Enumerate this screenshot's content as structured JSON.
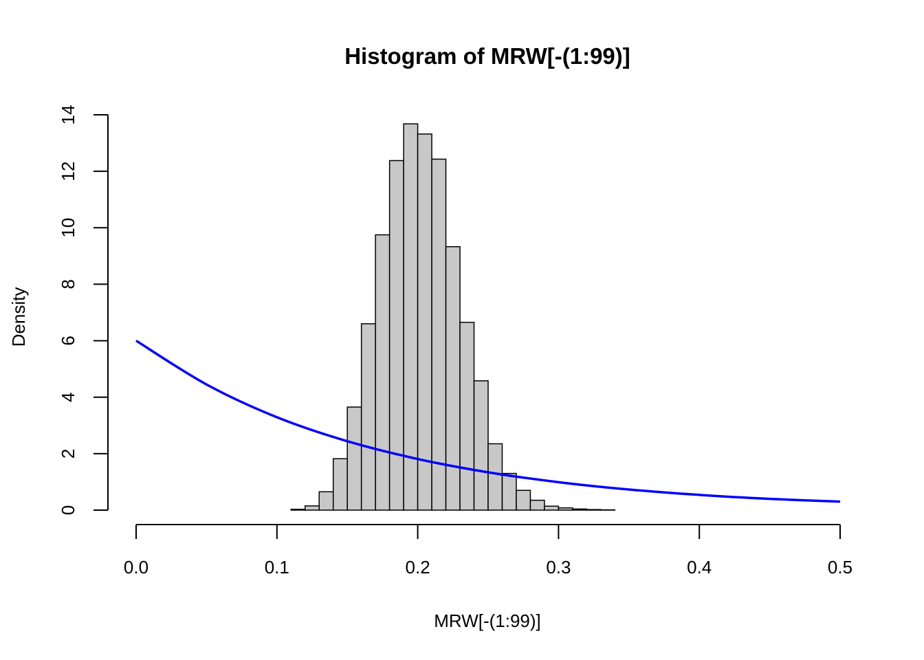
{
  "chart_data": {
    "type": "bar",
    "title": "Histogram of MRW[-(1:99)]",
    "xlabel": "MRW[-(1:99)]",
    "ylabel": "Density",
    "xlim": [
      0,
      0.5
    ],
    "ylim": [
      0,
      14
    ],
    "x_ticks": [
      "0.0",
      "0.1",
      "0.2",
      "0.3",
      "0.4",
      "0.5"
    ],
    "y_ticks": [
      "0",
      "2",
      "4",
      "6",
      "8",
      "10",
      "12",
      "14"
    ],
    "grid": false,
    "bin_width": 0.01,
    "bins": [
      {
        "start": 0.1,
        "value": 0.0
      },
      {
        "start": 0.11,
        "value": 0.03
      },
      {
        "start": 0.12,
        "value": 0.15
      },
      {
        "start": 0.13,
        "value": 0.65
      },
      {
        "start": 0.14,
        "value": 1.82
      },
      {
        "start": 0.15,
        "value": 3.65
      },
      {
        "start": 0.16,
        "value": 6.6
      },
      {
        "start": 0.17,
        "value": 9.75
      },
      {
        "start": 0.18,
        "value": 12.38
      },
      {
        "start": 0.19,
        "value": 13.68
      },
      {
        "start": 0.2,
        "value": 13.32
      },
      {
        "start": 0.21,
        "value": 12.43
      },
      {
        "start": 0.22,
        "value": 9.33
      },
      {
        "start": 0.23,
        "value": 6.65
      },
      {
        "start": 0.24,
        "value": 4.58
      },
      {
        "start": 0.25,
        "value": 2.35
      },
      {
        "start": 0.26,
        "value": 1.3
      },
      {
        "start": 0.27,
        "value": 0.7
      },
      {
        "start": 0.28,
        "value": 0.35
      },
      {
        "start": 0.29,
        "value": 0.14
      },
      {
        "start": 0.3,
        "value": 0.08
      },
      {
        "start": 0.31,
        "value": 0.04
      },
      {
        "start": 0.32,
        "value": 0.02
      },
      {
        "start": 0.33,
        "value": 0.01
      },
      {
        "start": 0.34,
        "value": 0.0
      }
    ],
    "series": [
      {
        "type": "line",
        "color": "#0000ff",
        "x": [
          0.0,
          0.05,
          0.1,
          0.15,
          0.2,
          0.25,
          0.3,
          0.35,
          0.4,
          0.45,
          0.5
        ],
        "values": [
          6.0,
          4.45,
          3.29,
          2.44,
          1.81,
          1.34,
          0.99,
          0.73,
          0.54,
          0.4,
          0.3
        ]
      }
    ],
    "colors": {
      "bar_fill": "#c8c8c8",
      "bar_stroke": "#000000",
      "curve": "#0000ff"
    }
  }
}
